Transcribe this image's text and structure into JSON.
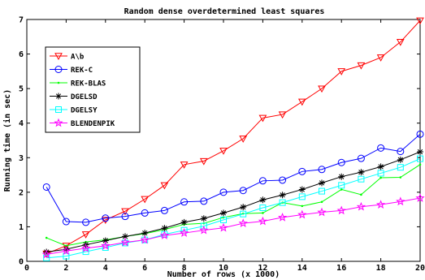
{
  "chart_data": {
    "type": "line",
    "title": "Random dense overdetermined least squares",
    "xlabel": "Number of rows (x 1000)",
    "ylabel": "Running time (in sec)",
    "xlim": [
      0,
      20
    ],
    "ylim": [
      0,
      7
    ],
    "xticks": [
      "0",
      "2",
      "4",
      "6",
      "8",
      "10",
      "12",
      "14",
      "16",
      "18",
      "20"
    ],
    "yticks": [
      "0",
      "1",
      "2",
      "3",
      "4",
      "5",
      "6",
      "7"
    ],
    "grid": false,
    "legend_position": "top-left",
    "x": [
      1,
      2,
      3,
      4,
      5,
      6,
      7,
      8,
      9,
      10,
      11,
      12,
      13,
      14,
      15,
      16,
      17,
      18,
      19,
      20
    ],
    "series": [
      {
        "name": "A\\b",
        "color": "#ff0000",
        "marker": "triangle-down",
        "values": [
          0.22,
          0.45,
          0.78,
          1.2,
          1.45,
          1.8,
          2.2,
          2.8,
          2.9,
          3.2,
          3.55,
          4.15,
          4.25,
          4.62,
          5.0,
          5.5,
          5.67,
          5.9,
          6.35,
          6.97
        ]
      },
      {
        "name": "REK-C",
        "color": "#0000ff",
        "marker": "circle",
        "values": [
          2.15,
          1.15,
          1.13,
          1.25,
          1.3,
          1.4,
          1.47,
          1.72,
          1.74,
          2.0,
          2.05,
          2.33,
          2.35,
          2.6,
          2.66,
          2.86,
          2.98,
          3.28,
          3.18,
          3.68
        ]
      },
      {
        "name": "REK-BLAS",
        "color": "#00ff00",
        "marker": "dot",
        "values": [
          0.68,
          0.45,
          0.56,
          0.62,
          0.72,
          0.8,
          0.92,
          1.07,
          1.1,
          1.27,
          1.38,
          1.4,
          1.7,
          1.6,
          1.72,
          2.08,
          1.93,
          2.42,
          2.43,
          2.8
        ]
      },
      {
        "name": "DGELSD",
        "color": "#000000",
        "marker": "asterisk",
        "values": [
          0.27,
          0.35,
          0.48,
          0.6,
          0.72,
          0.82,
          0.96,
          1.13,
          1.24,
          1.4,
          1.57,
          1.78,
          1.92,
          2.08,
          2.27,
          2.45,
          2.58,
          2.74,
          2.94,
          3.17
        ]
      },
      {
        "name": "DGELSY",
        "color": "#00ffff",
        "marker": "square",
        "values": [
          0.1,
          0.15,
          0.28,
          0.4,
          0.53,
          0.62,
          0.78,
          0.9,
          1.02,
          1.2,
          1.37,
          1.55,
          1.7,
          1.87,
          2.03,
          2.2,
          2.38,
          2.55,
          2.72,
          2.97
        ]
      },
      {
        "name": "BLENDENPIK",
        "color": "#ff00ff",
        "marker": "star",
        "values": [
          0.2,
          0.3,
          0.38,
          0.45,
          0.55,
          0.62,
          0.75,
          0.82,
          0.9,
          0.97,
          1.1,
          1.16,
          1.27,
          1.35,
          1.42,
          1.47,
          1.58,
          1.64,
          1.73,
          1.83
        ]
      }
    ]
  }
}
